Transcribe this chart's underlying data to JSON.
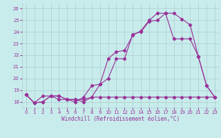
{
  "xlabel": "Windchill (Refroidissement éolien,°C)",
  "bg_color": "#c8ecec",
  "line_color": "#993399",
  "grid_color": "#aacccc",
  "spine_color": "#aacccc",
  "xlim": [
    -0.5,
    23.5
  ],
  "ylim": [
    17.5,
    26.5
  ],
  "yticks": [
    18,
    19,
    20,
    21,
    22,
    23,
    24,
    25,
    26
  ],
  "xticks": [
    0,
    1,
    2,
    3,
    4,
    5,
    6,
    7,
    8,
    9,
    10,
    11,
    12,
    13,
    14,
    15,
    16,
    17,
    18,
    19,
    20,
    21,
    22,
    23
  ],
  "line1_x": [
    0,
    1,
    2,
    3,
    4,
    5,
    6,
    7,
    8,
    9,
    10,
    11,
    12,
    13,
    14,
    15,
    16,
    17,
    18,
    19,
    20,
    21,
    22,
    23
  ],
  "line1_y": [
    18.6,
    17.9,
    18.0,
    18.5,
    18.5,
    18.2,
    18.2,
    18.0,
    18.4,
    19.5,
    20.0,
    21.7,
    21.7,
    23.8,
    24.0,
    24.9,
    25.0,
    25.6,
    25.6,
    25.1,
    24.6,
    21.9,
    19.4,
    18.4
  ],
  "line2_x": [
    0,
    1,
    2,
    3,
    4,
    5,
    6,
    7,
    8,
    9,
    10,
    11,
    12,
    13,
    14,
    15,
    16,
    17,
    18,
    19,
    20,
    21,
    22,
    23
  ],
  "line2_y": [
    18.6,
    17.9,
    18.0,
    18.5,
    18.2,
    18.2,
    18.2,
    18.2,
    18.4,
    18.4,
    18.4,
    18.4,
    18.4,
    18.4,
    18.4,
    18.4,
    18.4,
    18.4,
    18.4,
    18.4,
    18.4,
    18.4,
    18.4,
    18.4
  ],
  "line3_x": [
    0,
    1,
    2,
    3,
    4,
    5,
    6,
    7,
    8,
    9,
    10,
    11,
    12,
    13,
    14,
    15,
    16,
    17,
    18,
    19,
    20,
    21,
    22,
    23
  ],
  "line3_y": [
    18.6,
    17.9,
    18.5,
    18.5,
    18.5,
    18.2,
    18.0,
    18.4,
    19.4,
    19.5,
    21.7,
    22.3,
    22.4,
    23.7,
    24.1,
    25.0,
    25.6,
    25.6,
    23.4,
    23.4,
    23.4,
    21.9,
    19.4,
    18.4
  ],
  "tick_fontsize": 5.0,
  "xlabel_fontsize": 5.5,
  "lw": 0.85,
  "markersize": 2.2
}
